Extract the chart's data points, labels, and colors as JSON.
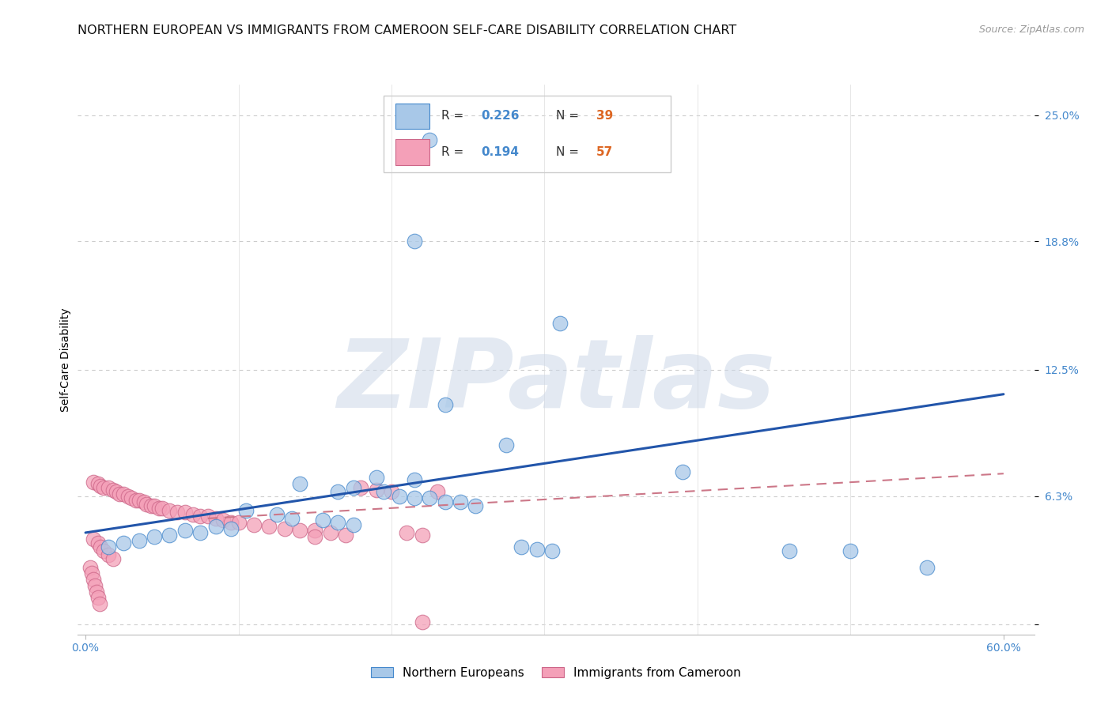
{
  "title": "NORTHERN EUROPEAN VS IMMIGRANTS FROM CAMEROON SELF-CARE DISABILITY CORRELATION CHART",
  "source": "Source: ZipAtlas.com",
  "ylabel": "Self-Care Disability",
  "xlim": [
    -0.005,
    0.62
  ],
  "ylim": [
    -0.005,
    0.265
  ],
  "xticks": [
    0.0,
    0.6
  ],
  "xticklabels": [
    "0.0%",
    "60.0%"
  ],
  "yticks": [
    0.0,
    0.063,
    0.125,
    0.188,
    0.25
  ],
  "yticklabels": [
    "",
    "6.3%",
    "12.5%",
    "18.8%",
    "25.0%"
  ],
  "label_blue": "Northern Europeans",
  "label_pink": "Immigrants from Cameroon",
  "color_blue": "#a8c8e8",
  "color_pink": "#f4a0b8",
  "color_blue_dark": "#4488cc",
  "color_pink_dark": "#cc6688",
  "color_blue_line": "#2255aa",
  "color_pink_line": "#cc7788",
  "title_fontsize": 11.5,
  "axis_label_fontsize": 10,
  "tick_fontsize": 10,
  "watermark": "ZIPatlas",
  "blue_points": [
    [
      0.225,
      0.238
    ],
    [
      0.215,
      0.188
    ],
    [
      0.31,
      0.148
    ],
    [
      0.235,
      0.108
    ],
    [
      0.275,
      0.088
    ],
    [
      0.19,
      0.072
    ],
    [
      0.215,
      0.071
    ],
    [
      0.14,
      0.069
    ],
    [
      0.175,
      0.067
    ],
    [
      0.165,
      0.065
    ],
    [
      0.195,
      0.065
    ],
    [
      0.205,
      0.063
    ],
    [
      0.215,
      0.062
    ],
    [
      0.225,
      0.062
    ],
    [
      0.235,
      0.06
    ],
    [
      0.245,
      0.06
    ],
    [
      0.255,
      0.058
    ],
    [
      0.105,
      0.056
    ],
    [
      0.125,
      0.054
    ],
    [
      0.135,
      0.052
    ],
    [
      0.155,
      0.051
    ],
    [
      0.165,
      0.05
    ],
    [
      0.175,
      0.049
    ],
    [
      0.085,
      0.048
    ],
    [
      0.095,
      0.047
    ],
    [
      0.065,
      0.046
    ],
    [
      0.075,
      0.045
    ],
    [
      0.055,
      0.044
    ],
    [
      0.045,
      0.043
    ],
    [
      0.035,
      0.041
    ],
    [
      0.025,
      0.04
    ],
    [
      0.015,
      0.038
    ],
    [
      0.285,
      0.038
    ],
    [
      0.295,
      0.037
    ],
    [
      0.305,
      0.036
    ],
    [
      0.5,
      0.036
    ],
    [
      0.46,
      0.036
    ],
    [
      0.55,
      0.028
    ],
    [
      0.39,
      0.075
    ]
  ],
  "pink_points": [
    [
      0.005,
      0.07
    ],
    [
      0.008,
      0.069
    ],
    [
      0.01,
      0.068
    ],
    [
      0.012,
      0.067
    ],
    [
      0.015,
      0.067
    ],
    [
      0.018,
      0.066
    ],
    [
      0.02,
      0.065
    ],
    [
      0.022,
      0.064
    ],
    [
      0.025,
      0.064
    ],
    [
      0.028,
      0.063
    ],
    [
      0.03,
      0.062
    ],
    [
      0.033,
      0.061
    ],
    [
      0.035,
      0.061
    ],
    [
      0.038,
      0.06
    ],
    [
      0.04,
      0.059
    ],
    [
      0.043,
      0.058
    ],
    [
      0.045,
      0.058
    ],
    [
      0.048,
      0.057
    ],
    [
      0.05,
      0.057
    ],
    [
      0.055,
      0.056
    ],
    [
      0.06,
      0.055
    ],
    [
      0.065,
      0.055
    ],
    [
      0.07,
      0.054
    ],
    [
      0.075,
      0.053
    ],
    [
      0.08,
      0.053
    ],
    [
      0.085,
      0.052
    ],
    [
      0.09,
      0.051
    ],
    [
      0.095,
      0.05
    ],
    [
      0.1,
      0.05
    ],
    [
      0.11,
      0.049
    ],
    [
      0.12,
      0.048
    ],
    [
      0.13,
      0.047
    ],
    [
      0.14,
      0.046
    ],
    [
      0.15,
      0.046
    ],
    [
      0.16,
      0.045
    ],
    [
      0.17,
      0.044
    ],
    [
      0.18,
      0.067
    ],
    [
      0.19,
      0.066
    ],
    [
      0.2,
      0.065
    ],
    [
      0.21,
      0.045
    ],
    [
      0.22,
      0.044
    ],
    [
      0.23,
      0.065
    ],
    [
      0.005,
      0.042
    ],
    [
      0.008,
      0.04
    ],
    [
      0.01,
      0.038
    ],
    [
      0.012,
      0.036
    ],
    [
      0.015,
      0.034
    ],
    [
      0.018,
      0.032
    ],
    [
      0.003,
      0.028
    ],
    [
      0.004,
      0.025
    ],
    [
      0.005,
      0.022
    ],
    [
      0.006,
      0.019
    ],
    [
      0.007,
      0.016
    ],
    [
      0.008,
      0.013
    ],
    [
      0.009,
      0.01
    ],
    [
      0.15,
      0.043
    ],
    [
      0.22,
      0.001
    ]
  ],
  "blue_line_x": [
    0.0,
    0.6
  ],
  "blue_line_y": [
    0.045,
    0.113
  ],
  "pink_line_x": [
    0.08,
    0.6
  ],
  "pink_line_y": [
    0.052,
    0.074
  ],
  "background_color": "#ffffff",
  "grid_color": "#cccccc",
  "legend_R1": "0.226",
  "legend_N1": "39",
  "legend_R2": "0.194",
  "legend_N2": "57"
}
